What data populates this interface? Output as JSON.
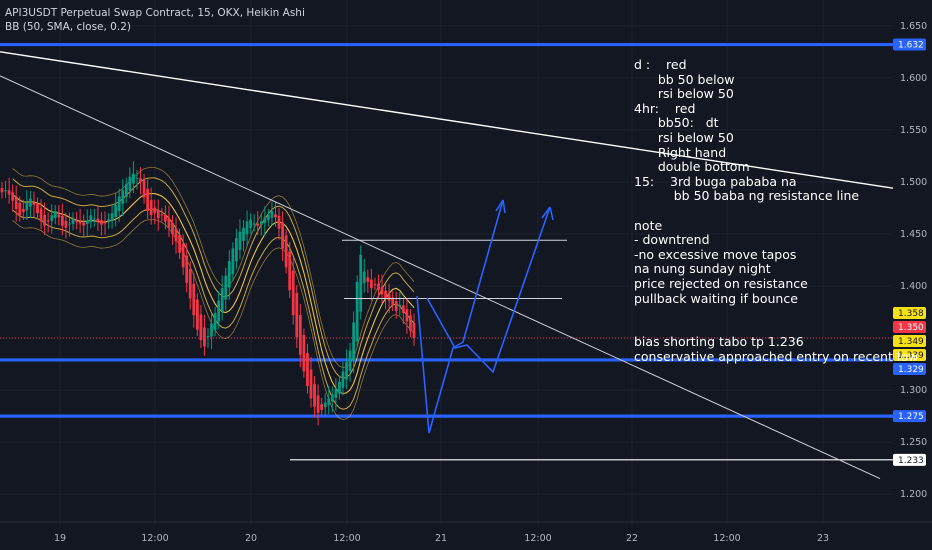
{
  "header": {
    "symbol_line": "API3USDT Perpetual Swap Contract, 15, OKX, Heikin Ashi",
    "indicator_line": "BB (50, SMA, close, 0.2)"
  },
  "chart_data": {
    "type": "candlestick",
    "ylim": [
      1.18,
      1.67
    ],
    "y_ticks": [
      "1.650",
      "1.600",
      "1.550",
      "1.500",
      "1.450",
      "1.400",
      "1.300",
      "1.250",
      "1.200"
    ],
    "x_ticks": [
      "19",
      "12:00",
      "20",
      "12:00",
      "21",
      "12:00",
      "22",
      "12:00",
      "23"
    ],
    "horizontal_levels": [
      {
        "price": 1.632,
        "label": "1.632",
        "color": "#2962ff",
        "style": "thick"
      },
      {
        "price": 1.329,
        "label": "1.329",
        "color": "#2962ff",
        "style": "thick"
      },
      {
        "price": 1.275,
        "label": "1.275",
        "color": "#2962ff",
        "style": "thick"
      },
      {
        "price": 1.233,
        "label": "1.233",
        "color": "#ffffff",
        "style": "thin"
      }
    ],
    "current_price": {
      "price": 1.35,
      "label": "1.350",
      "color": "#f23645"
    },
    "badges": [
      {
        "label": "1.358",
        "price": 1.358,
        "bg": "#f7e017",
        "fg": "#131722"
      },
      {
        "label": "1.350",
        "price": 1.35,
        "bg": "#f23645",
        "fg": "#ffffff"
      },
      {
        "label": "1.349",
        "price": 1.349,
        "bg": "#f7e017",
        "fg": "#131722"
      },
      {
        "label": "1.339",
        "price": 1.339,
        "bg": "#f7e017",
        "fg": "#131722"
      },
      {
        "label": "1.329",
        "price": 1.329,
        "bg": "#2962ff",
        "fg": "#ffffff"
      }
    ],
    "ha_candles_close": [
      1.49,
      1.492,
      1.488,
      1.482,
      1.474,
      1.468,
      1.471,
      1.48,
      1.484,
      1.478,
      1.47,
      1.462,
      1.458,
      1.462,
      1.468,
      1.472,
      1.466,
      1.458,
      1.456,
      1.46,
      1.465,
      1.462,
      1.46,
      1.458,
      1.463,
      1.468,
      1.465,
      1.462,
      1.459,
      1.461,
      1.464,
      1.47,
      1.478,
      1.486,
      1.492,
      1.498,
      1.505,
      1.508,
      1.504,
      1.5,
      1.485,
      1.472,
      1.468,
      1.47,
      1.465,
      1.468,
      1.462,
      1.456,
      1.45,
      1.443,
      1.432,
      1.418,
      1.403,
      1.388,
      1.372,
      1.358,
      1.348,
      1.342,
      1.352,
      1.364,
      1.374,
      1.386,
      1.398,
      1.41,
      1.424,
      1.436,
      1.446,
      1.452,
      1.456,
      1.462,
      1.464,
      1.46,
      1.458,
      1.462,
      1.466,
      1.468,
      1.472,
      1.466,
      1.455,
      1.436,
      1.418,
      1.396,
      1.372,
      1.351,
      1.334,
      1.318,
      1.304,
      1.292,
      1.284,
      1.278,
      1.281,
      1.288,
      1.292,
      1.296,
      1.301,
      1.308,
      1.318,
      1.327,
      1.338,
      1.365,
      1.404,
      1.43,
      1.414,
      1.404,
      1.398,
      1.402,
      1.396,
      1.392,
      1.388,
      1.386,
      1.382,
      1.376,
      1.382,
      1.374,
      1.366,
      1.357,
      1.35
    ],
    "annotations": [
      {
        "kind": "trendline",
        "price_start": 1.625,
        "price_end": 1.494
      },
      {
        "kind": "trendline",
        "price_start": 1.6,
        "price_end": 1.212
      },
      {
        "kind": "hline",
        "price": 1.444
      },
      {
        "kind": "hline",
        "price": 1.388
      }
    ],
    "projection_paths": 2
  },
  "notes": {
    "lines": [
      "d :    red",
      "      bb 50 below",
      "      rsi below 50",
      "4hr:    red",
      "      bb50:   dt",
      "      rsi below 50",
      "      Right hand",
      "      double bottom",
      "15:    3rd buga pababa na",
      "          bb 50 baba ng resistance line",
      "",
      "note",
      "- downtrend",
      "-no excessive move tapos",
      "na nung sunday night",
      "price rejected on resistance",
      "pullback waiting if bounce",
      "",
      "",
      "bias shorting tabo tp 1.236",
      "conservative approached entry on recent low"
    ]
  },
  "colors": {
    "up": "#089981",
    "down": "#f23645",
    "bb": "#f7c948",
    "level": "#2962ff",
    "projection": "#2962ff"
  }
}
